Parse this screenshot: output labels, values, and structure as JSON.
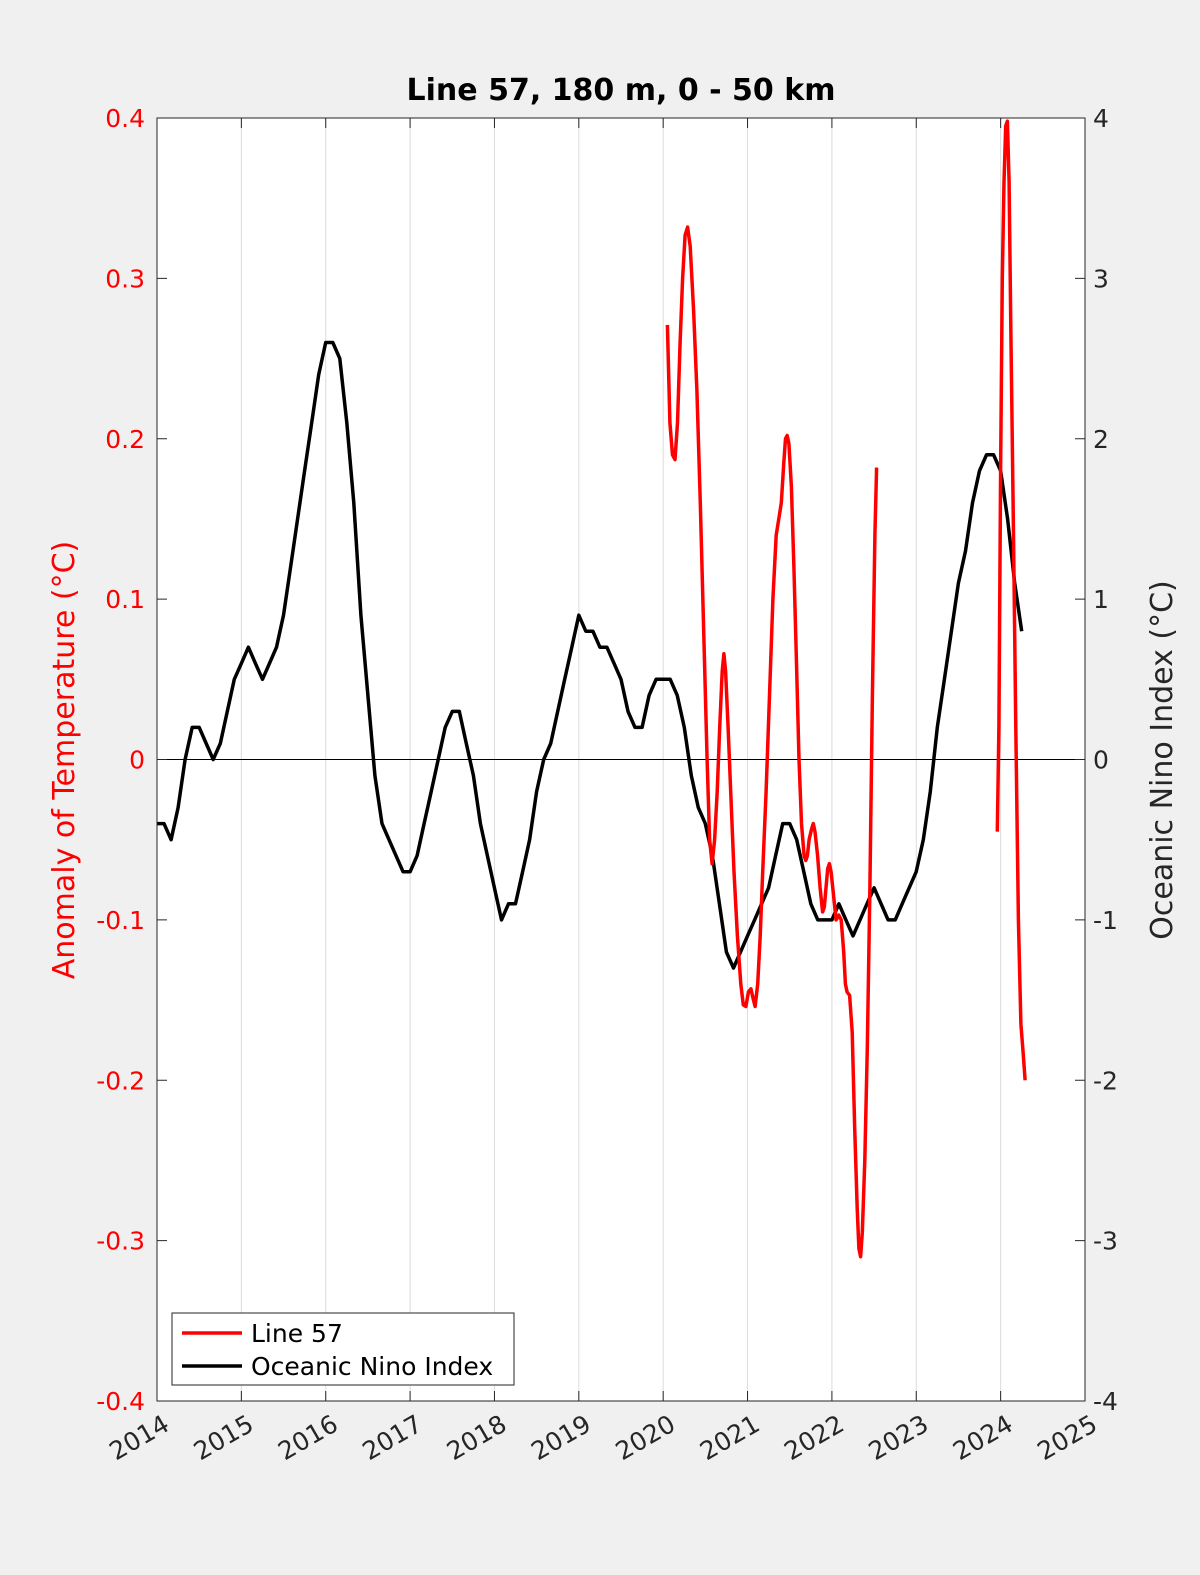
{
  "colors": {
    "background": "#f0f0f0",
    "plot_background": "#ffffff",
    "line57": "#ff0000",
    "oni": "#000000",
    "grid": "#dcdcdc",
    "left_axis": "#ff0000",
    "right_axis": "#262626"
  },
  "chart_data": {
    "type": "line",
    "title": "Line 57, 180 m, 0 - 50 km",
    "ylabel_left": "Anomaly of Temperature (°C)",
    "ylabel_right": "Oceanic Nino Index (°C)",
    "xlim": [
      2014,
      2025
    ],
    "ylim_left": [
      -0.4,
      0.4
    ],
    "ylim_right": [
      -4,
      4
    ],
    "x_ticks": [
      "2014",
      "2015",
      "2016",
      "2017",
      "2018",
      "2019",
      "2020",
      "2021",
      "2022",
      "2023",
      "2024",
      "2025"
    ],
    "y_ticks_left": [
      "0.4",
      "0.3",
      "0.2",
      "0.1",
      "0",
      "-0.1",
      "-0.2",
      "-0.3",
      "-0.4"
    ],
    "y_ticks_right": [
      "4",
      "3",
      "2",
      "1",
      "0",
      "-1",
      "-2",
      "-3",
      "-4"
    ],
    "grid": "vertical",
    "zero_line": true,
    "legend": {
      "location": "bottom-left",
      "items": [
        "Line 57",
        "Oceanic Nino Index"
      ]
    },
    "series": [
      {
        "name": "Line 57",
        "axis": "left",
        "segments": [
          [
            [
              2020.05,
              0.271
            ],
            [
              2020.08,
              0.21
            ],
            [
              2020.11,
              0.19
            ],
            [
              2020.14,
              0.187
            ],
            [
              2020.17,
              0.21
            ],
            [
              2020.2,
              0.26
            ],
            [
              2020.23,
              0.3
            ],
            [
              2020.26,
              0.327
            ],
            [
              2020.29,
              0.332
            ],
            [
              2020.32,
              0.32
            ],
            [
              2020.36,
              0.28
            ],
            [
              2020.4,
              0.23
            ],
            [
              2020.44,
              0.16
            ],
            [
              2020.48,
              0.08
            ],
            [
              2020.52,
              0.0
            ],
            [
              2020.55,
              -0.05
            ],
            [
              2020.58,
              -0.065
            ],
            [
              2020.61,
              -0.05
            ],
            [
              2020.64,
              -0.02
            ],
            [
              2020.67,
              0.02
            ],
            [
              2020.7,
              0.055
            ],
            [
              2020.72,
              0.066
            ],
            [
              2020.74,
              0.055
            ],
            [
              2020.77,
              0.02
            ],
            [
              2020.8,
              -0.02
            ],
            [
              2020.84,
              -0.07
            ],
            [
              2020.88,
              -0.11
            ],
            [
              2020.92,
              -0.14
            ],
            [
              2020.95,
              -0.153
            ],
            [
              2020.98,
              -0.154
            ],
            [
              2021.01,
              -0.145
            ],
            [
              2021.04,
              -0.143
            ],
            [
              2021.07,
              -0.15
            ],
            [
              2021.09,
              -0.154
            ],
            [
              2021.12,
              -0.14
            ],
            [
              2021.15,
              -0.11
            ],
            [
              2021.18,
              -0.07
            ],
            [
              2021.22,
              -0.02
            ],
            [
              2021.26,
              0.04
            ],
            [
              2021.3,
              0.1
            ],
            [
              2021.34,
              0.14
            ],
            [
              2021.37,
              0.15
            ],
            [
              2021.4,
              0.16
            ],
            [
              2021.43,
              0.185
            ],
            [
              2021.45,
              0.2
            ],
            [
              2021.47,
              0.202
            ],
            [
              2021.49,
              0.197
            ],
            [
              2021.52,
              0.17
            ],
            [
              2021.55,
              0.12
            ],
            [
              2021.58,
              0.06
            ],
            [
              2021.61,
              0.0
            ],
            [
              2021.64,
              -0.04
            ],
            [
              2021.67,
              -0.06
            ],
            [
              2021.69,
              -0.063
            ],
            [
              2021.71,
              -0.06
            ],
            [
              2021.73,
              -0.05
            ],
            [
              2021.76,
              -0.043
            ],
            [
              2021.78,
              -0.04
            ],
            [
              2021.8,
              -0.045
            ],
            [
              2021.83,
              -0.06
            ],
            [
              2021.86,
              -0.08
            ],
            [
              2021.89,
              -0.095
            ],
            [
              2021.91,
              -0.092
            ],
            [
              2021.93,
              -0.08
            ],
            [
              2021.95,
              -0.068
            ],
            [
              2021.97,
              -0.065
            ],
            [
              2021.99,
              -0.07
            ],
            [
              2022.02,
              -0.085
            ],
            [
              2022.05,
              -0.1
            ],
            [
              2022.08,
              -0.097
            ],
            [
              2022.11,
              -0.1
            ],
            [
              2022.14,
              -0.12
            ],
            [
              2022.16,
              -0.14
            ],
            [
              2022.18,
              -0.145
            ],
            [
              2022.21,
              -0.147
            ],
            [
              2022.24,
              -0.17
            ],
            [
              2022.27,
              -0.23
            ],
            [
              2022.3,
              -0.28
            ],
            [
              2022.32,
              -0.305
            ],
            [
              2022.34,
              -0.31
            ],
            [
              2022.36,
              -0.295
            ],
            [
              2022.39,
              -0.25
            ],
            [
              2022.42,
              -0.18
            ],
            [
              2022.45,
              -0.08
            ],
            [
              2022.48,
              0.04
            ],
            [
              2022.51,
              0.14
            ],
            [
              2022.53,
              0.182
            ]
          ],
          [
            [
              2023.96,
              -0.045
            ],
            [
              2023.98,
              0.02
            ],
            [
              2024.0,
              0.18
            ],
            [
              2024.02,
              0.3
            ],
            [
              2024.04,
              0.36
            ],
            [
              2024.06,
              0.395
            ],
            [
              2024.08,
              0.398
            ],
            [
              2024.1,
              0.36
            ],
            [
              2024.12,
              0.27
            ],
            [
              2024.15,
              0.15
            ],
            [
              2024.18,
              0.02
            ],
            [
              2024.21,
              -0.1
            ],
            [
              2024.24,
              -0.165
            ],
            [
              2024.27,
              -0.185
            ],
            [
              2024.29,
              -0.2
            ]
          ]
        ]
      },
      {
        "name": "Oceanic Nino Index",
        "axis": "right",
        "x_start": 2014.0,
        "x_step": 0.08333,
        "values": [
          -0.4,
          -0.4,
          -0.5,
          -0.3,
          0.0,
          0.2,
          0.2,
          0.1,
          0.0,
          0.1,
          0.3,
          0.5,
          0.6,
          0.7,
          0.6,
          0.5,
          0.6,
          0.7,
          0.9,
          1.2,
          1.5,
          1.8,
          2.1,
          2.4,
          2.6,
          2.6,
          2.5,
          2.1,
          1.6,
          0.9,
          0.4,
          -0.1,
          -0.4,
          -0.5,
          -0.6,
          -0.7,
          -0.7,
          -0.6,
          -0.4,
          -0.2,
          0.0,
          0.2,
          0.3,
          0.3,
          0.1,
          -0.1,
          -0.4,
          -0.6,
          -0.8,
          -1.0,
          -0.9,
          -0.9,
          -0.7,
          -0.5,
          -0.2,
          0.0,
          0.1,
          0.3,
          0.5,
          0.7,
          0.9,
          0.8,
          0.8,
          0.7,
          0.7,
          0.6,
          0.5,
          0.3,
          0.2,
          0.2,
          0.4,
          0.5,
          0.5,
          0.5,
          0.4,
          0.2,
          -0.1,
          -0.3,
          -0.4,
          -0.6,
          -0.9,
          -1.2,
          -1.3,
          -1.2,
          -1.1,
          -1.0,
          -0.9,
          -0.8,
          -0.6,
          -0.4,
          -0.4,
          -0.5,
          -0.7,
          -0.9,
          -1.0,
          -1.0,
          -1.0,
          -0.9,
          -1.0,
          -1.1,
          -1.0,
          -0.9,
          -0.8,
          -0.9,
          -1.0,
          -1.0,
          -0.9,
          -0.8,
          -0.7,
          -0.5,
          -0.2,
          0.2,
          0.5,
          0.8,
          1.1,
          1.3,
          1.6,
          1.8,
          1.9,
          1.9,
          1.8,
          1.5,
          1.1,
          0.8
        ]
      }
    ]
  }
}
